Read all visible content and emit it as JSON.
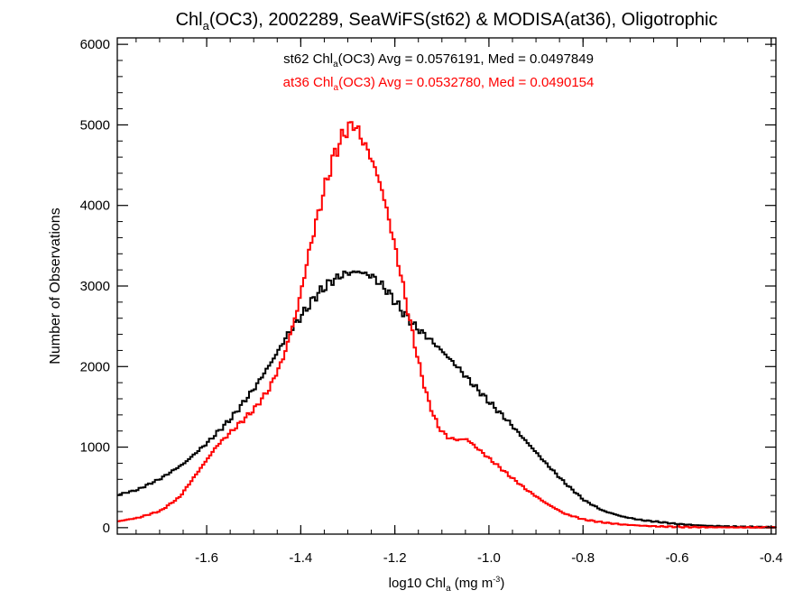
{
  "chart_data": {
    "type": "line",
    "step": true,
    "title": {
      "pre": "Chl",
      "sub": "a",
      "post": "(OC3), 2002289, SeaWiFS(st62) & MODISA(at36), Oligotrophic"
    },
    "xlabel": {
      "pre": "log10 Chl",
      "sub": "a",
      "mid": " (mg m",
      "sup": "-3",
      "post": ")"
    },
    "ylabel": "Number of Observations",
    "xlim": [
      -1.79,
      -0.39
    ],
    "ylim": [
      -80,
      6080
    ],
    "xticks": [
      -1.6,
      -1.4,
      -1.2,
      -1.0,
      -0.8,
      -0.6,
      -0.4
    ],
    "xtick_labels": [
      "-1.6",
      "-1.4",
      "-1.2",
      "-1.0",
      "-0.8",
      "-0.6",
      "-0.4"
    ],
    "yticks": [
      0,
      1000,
      2000,
      3000,
      4000,
      5000,
      6000
    ],
    "ytick_labels": [
      "0",
      "1000",
      "2000",
      "3000",
      "4000",
      "5000",
      "6000"
    ],
    "annotations": [
      {
        "pre": "st62 Chl",
        "sub": "a",
        "post": "(OC3) Avg = 0.0576191, Med = 0.0497849",
        "color": "#000000"
      },
      {
        "pre": "at36 Chl",
        "sub": "a",
        "post": "(OC3) Avg = 0.0532780, Med = 0.0490154",
        "color": "#ff0000"
      }
    ],
    "series": [
      {
        "color": "#000000",
        "points": [
          [
            -1.79,
            410
          ],
          [
            -1.75,
            470
          ],
          [
            -1.7,
            610
          ],
          [
            -1.65,
            800
          ],
          [
            -1.6,
            1060
          ],
          [
            -1.55,
            1360
          ],
          [
            -1.5,
            1740
          ],
          [
            -1.46,
            2100
          ],
          [
            -1.43,
            2400
          ],
          [
            -1.4,
            2640
          ],
          [
            -1.37,
            2880
          ],
          [
            -1.34,
            3050
          ],
          [
            -1.31,
            3150
          ],
          [
            -1.28,
            3180
          ],
          [
            -1.25,
            3120
          ],
          [
            -1.22,
            2950
          ],
          [
            -1.19,
            2710
          ],
          [
            -1.16,
            2500
          ],
          [
            -1.13,
            2350
          ],
          [
            -1.1,
            2180
          ],
          [
            -1.07,
            2000
          ],
          [
            -1.04,
            1800
          ],
          [
            -1.0,
            1550
          ],
          [
            -0.96,
            1310
          ],
          [
            -0.92,
            1050
          ],
          [
            -0.88,
            790
          ],
          [
            -0.84,
            550
          ],
          [
            -0.8,
            340
          ],
          [
            -0.76,
            210
          ],
          [
            -0.72,
            140
          ],
          [
            -0.68,
            95
          ],
          [
            -0.64,
            70
          ],
          [
            -0.6,
            45
          ],
          [
            -0.56,
            30
          ],
          [
            -0.52,
            20
          ],
          [
            -0.48,
            12
          ],
          [
            -0.44,
            8
          ],
          [
            -0.39,
            5
          ]
        ]
      },
      {
        "color": "#ff0000",
        "points": [
          [
            -1.79,
            80
          ],
          [
            -1.75,
            120
          ],
          [
            -1.7,
            210
          ],
          [
            -1.66,
            380
          ],
          [
            -1.62,
            700
          ],
          [
            -1.58,
            1020
          ],
          [
            -1.54,
            1250
          ],
          [
            -1.5,
            1480
          ],
          [
            -1.47,
            1720
          ],
          [
            -1.44,
            2100
          ],
          [
            -1.41,
            2700
          ],
          [
            -1.38,
            3550
          ],
          [
            -1.35,
            4250
          ],
          [
            -1.33,
            4650
          ],
          [
            -1.31,
            4900
          ],
          [
            -1.29,
            5020
          ],
          [
            -1.27,
            4800
          ],
          [
            -1.25,
            4550
          ],
          [
            -1.23,
            4200
          ],
          [
            -1.21,
            3700
          ],
          [
            -1.19,
            3150
          ],
          [
            -1.17,
            2550
          ],
          [
            -1.15,
            2000
          ],
          [
            -1.13,
            1550
          ],
          [
            -1.11,
            1250
          ],
          [
            -1.09,
            1120
          ],
          [
            -1.07,
            1090
          ],
          [
            -1.05,
            1100
          ],
          [
            -1.03,
            1000
          ],
          [
            -1.0,
            850
          ],
          [
            -0.96,
            650
          ],
          [
            -0.92,
            460
          ],
          [
            -0.88,
            300
          ],
          [
            -0.84,
            170
          ],
          [
            -0.8,
            100
          ],
          [
            -0.76,
            65
          ],
          [
            -0.72,
            40
          ],
          [
            -0.68,
            25
          ],
          [
            -0.64,
            15
          ],
          [
            -0.6,
            10
          ],
          [
            -0.55,
            6
          ],
          [
            -0.5,
            4
          ],
          [
            -0.44,
            3
          ],
          [
            -0.39,
            2
          ]
        ]
      }
    ]
  }
}
